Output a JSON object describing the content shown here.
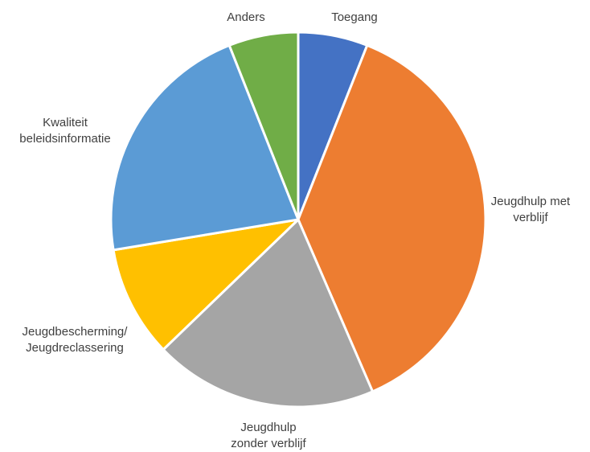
{
  "chart_data": {
    "type": "pie",
    "title": "",
    "start_angle_deg": 0,
    "direction": "clockwise",
    "legend": "none",
    "slices": [
      {
        "label": [
          "Toegang"
        ],
        "value": 6.0,
        "color": "#4472C4"
      },
      {
        "label": [
          "Jeugdhulp met",
          "verblijf"
        ],
        "value": 37.5,
        "color": "#ED7D31"
      },
      {
        "label": [
          "Jeugdhulp",
          "zonder verblijf"
        ],
        "value": 19.3,
        "color": "#A5A5A5"
      },
      {
        "label": [
          "Jeugdbescherming/",
          "Jeugdreclassering"
        ],
        "value": 9.6,
        "color": "#FFC000"
      },
      {
        "label": [
          "Kwaliteit",
          "beleidsinformatie"
        ],
        "value": 21.6,
        "color": "#5B9BD5"
      },
      {
        "label": [
          "Anders"
        ],
        "value": 6.0,
        "color": "#70AD47"
      }
    ]
  }
}
